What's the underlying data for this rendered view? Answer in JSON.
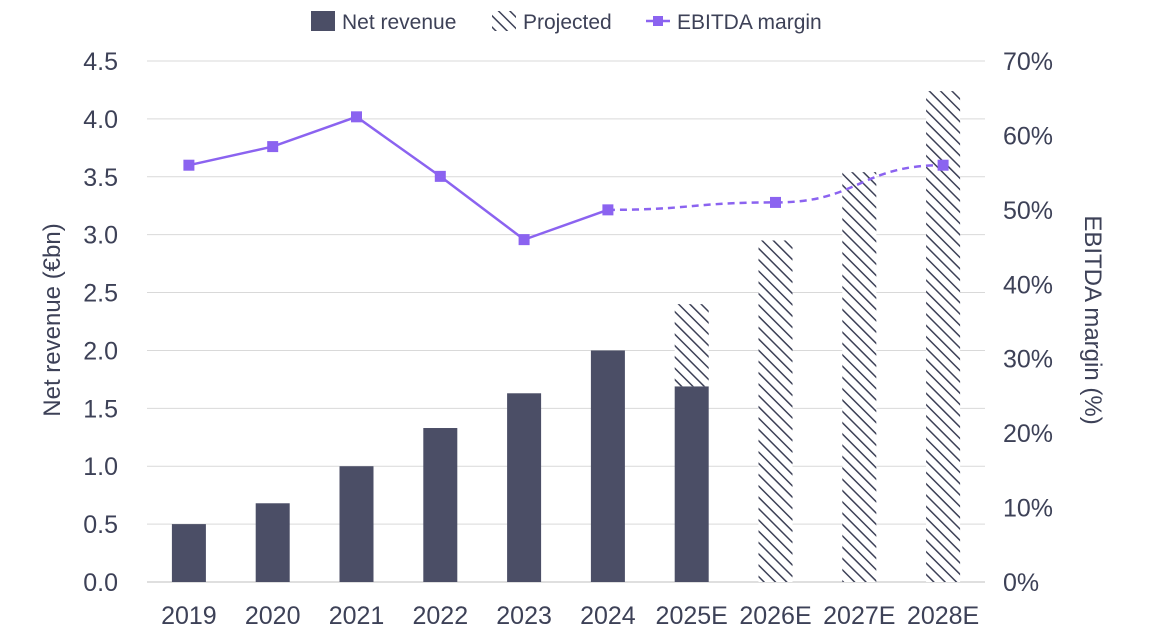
{
  "chart_data": {
    "type": "bar",
    "categories": [
      "2019",
      "2020",
      "2021",
      "2022",
      "2023",
      "2024",
      "2025E",
      "2026E",
      "2027E",
      "2028E"
    ],
    "series": [
      {
        "name": "Net revenue",
        "type": "bar",
        "axis": "left",
        "values": [
          0.5,
          0.68,
          1.0,
          1.33,
          1.63,
          2.0,
          1.69,
          null,
          null,
          null
        ]
      },
      {
        "name": "Projected",
        "type": "bar-hatched",
        "axis": "left",
        "stacked_on": "Net revenue",
        "values": [
          null,
          null,
          null,
          null,
          null,
          null,
          0.71,
          2.95,
          3.54,
          4.24
        ]
      },
      {
        "name": "EBITDA margin",
        "type": "line",
        "axis": "right",
        "values": [
          56,
          58.5,
          62.5,
          54.5,
          46,
          50,
          null,
          51,
          null,
          56
        ],
        "projected_from_index": 5
      }
    ],
    "ylabel": "Net revenue (€bn)",
    "ylabel_right": "EBITDA margin (%)",
    "ylim": [
      0,
      4.5
    ],
    "ylim_right": [
      0,
      70
    ],
    "yticks": [
      "0.0",
      "0.5",
      "1.0",
      "1.5",
      "2.0",
      "2.5",
      "3.0",
      "3.5",
      "4.0",
      "4.5"
    ],
    "yticks_right": [
      "0%",
      "10%",
      "20%",
      "30%",
      "40%",
      "50%",
      "60%",
      "70%"
    ],
    "grid": true,
    "legend_position": "top",
    "colors": {
      "bar": "#4b4e66",
      "line": "#8b63f0",
      "hatch": "#3d4157",
      "grid": "#d9d9d9",
      "text": "#3d4157"
    }
  }
}
